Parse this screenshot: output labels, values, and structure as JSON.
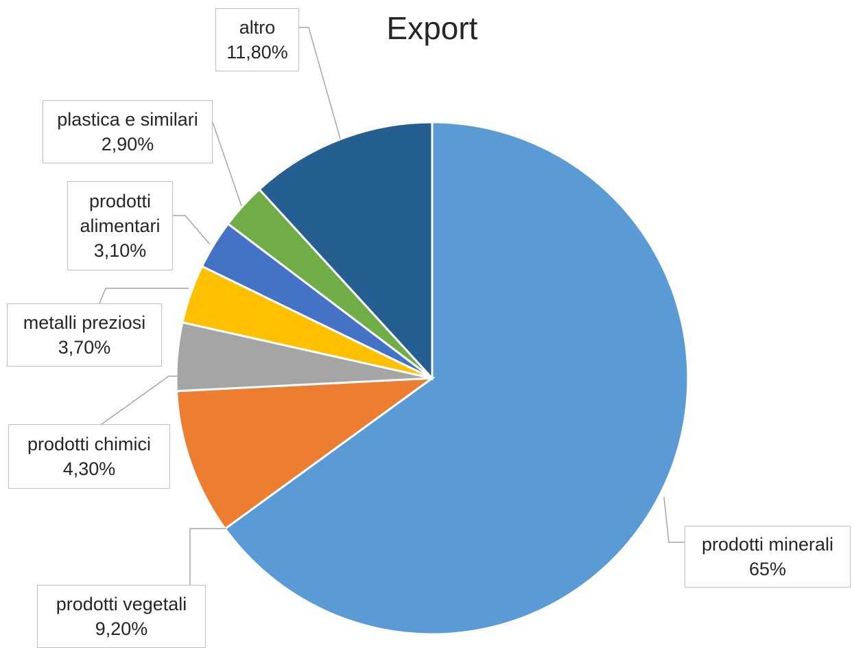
{
  "chart_data": {
    "type": "pie",
    "title": "Export",
    "slices": [
      {
        "label": "prodotti minerali",
        "value": 65,
        "value_label": "65%",
        "color": "#5b9bd5"
      },
      {
        "label": "prodotti vegetali",
        "value": 9.2,
        "value_label": "9,20%",
        "color": "#ed7d31"
      },
      {
        "label": "prodotti chimici",
        "value": 4.3,
        "value_label": "4,30%",
        "color": "#a5a5a5"
      },
      {
        "label": "metalli preziosi",
        "value": 3.7,
        "value_label": "3,70%",
        "color": "#ffc000"
      },
      {
        "label": "prodotti alimentari",
        "value": 3.1,
        "value_label": "3,10%",
        "color": "#4472c4"
      },
      {
        "label": "plastica e similari",
        "value": 2.9,
        "value_label": "2,90%",
        "color": "#70ad47"
      },
      {
        "label": "altro",
        "value": 11.8,
        "value_label": "11,80%",
        "color": "#255e91"
      }
    ],
    "legend": "none",
    "data_labels": "callouts with leader lines"
  }
}
